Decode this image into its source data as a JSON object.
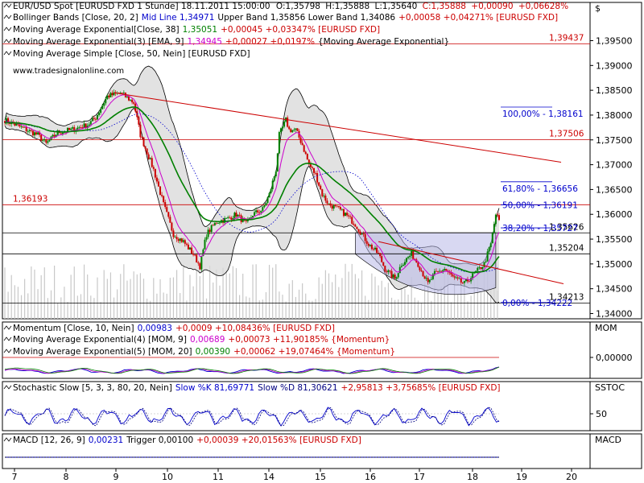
{
  "chart_data": [
    {
      "type": "candlestick",
      "title": "EUR/USD Spot [EURUSD FXD  1 Stunde] 18.11.2011 15:00:00",
      "quote": {
        "open_label": "O:",
        "open": "1,35798",
        "high_label": "H:",
        "high": "1,35888",
        "low_label": "L:",
        "low": "1,35640",
        "close_label": "C:",
        "close": "1,35888",
        "change": "+0,00090",
        "change_pct": "+0,06628%"
      },
      "currency_label": "$",
      "ylim": [
        1.3385,
        1.3985
      ],
      "y_ticks": [
        "1,39500",
        "1,39000",
        "1,38500",
        "1,38000",
        "1,37500",
        "1,37000",
        "1,36500",
        "1,36000",
        "1,35500",
        "1,35000",
        "1,34500",
        "1,34000"
      ],
      "y_tick_values": [
        1.395,
        1.39,
        1.385,
        1.38,
        1.375,
        1.37,
        1.365,
        1.36,
        1.355,
        1.35,
        1.345,
        1.34
      ],
      "x_ticks": [
        "7",
        "8",
        "9",
        "10",
        "11",
        "14",
        "15",
        "16",
        "17",
        "18",
        "19",
        "20"
      ],
      "watermark": "www.tradesignalonline.com",
      "legend": [
        {
          "text": "Bollinger Bands [Close, 20, 2]",
          "color": "#000000"
        },
        {
          "text": "Mid Line 1,34971",
          "color": "#0000cc"
        },
        {
          "text": "Upper Band 1,35856 Lower Band 1,34086",
          "color": "#000000"
        },
        {
          "text": "+0,00058 +0,04271% [EURUSD FXD]",
          "color": "#cc0000"
        },
        {
          "text": "Moving Average Exponential[Close, 38]",
          "color": "#000000"
        },
        {
          "text": "1,35051",
          "color": "#008000"
        },
        {
          "text": "+0,00045 +0,03347% [EURUSD FXD]",
          "color": "#cc0000"
        },
        {
          "text": "Moving Average Exponential(3) [EMA, 9]",
          "color": "#000000"
        },
        {
          "text": "1,34945",
          "color": "#cc00cc"
        },
        {
          "text": "+0,00027 +0,0197%",
          "color": "#cc0000"
        },
        {
          "text": "{Moving Average Exponential}",
          "color": "#000000"
        },
        {
          "text": "Moving Average Simple [Close, 50, Nein] [EURUSD FXD]",
          "color": "#000000"
        }
      ],
      "series": [
        {
          "name": "EMA 38",
          "color": "#008000"
        },
        {
          "name": "EMA 9",
          "color": "#cc00cc"
        },
        {
          "name": "SMA 50",
          "color": "#0000cc"
        },
        {
          "name": "Bollinger Bands",
          "color": "#000000"
        }
      ],
      "horizontal_levels": [
        {
          "label": "1,39437",
          "value": 1.39437,
          "color": "#cc0000"
        },
        {
          "label": "1,37506",
          "value": 1.37506,
          "color": "#cc0000"
        },
        {
          "label": "1,36193",
          "value": 1.36193,
          "color": "#cc0000"
        },
        {
          "label": "1,35626",
          "value": 1.35626,
          "color": "#000000"
        },
        {
          "label": "1,35204",
          "value": 1.35204,
          "color": "#000000"
        },
        {
          "label": "1,34213",
          "value": 1.34213,
          "color": "#000000"
        }
      ],
      "fibonacci": [
        {
          "label": "100,00% - 1,38161",
          "value": 1.38161
        },
        {
          "label": "61,80% - 1,36656",
          "value": 1.36656
        },
        {
          "label": "50,00% - 1,36191",
          "value": 1.36191
        },
        {
          "label": "38,20% - 1,35727",
          "value": 1.35727
        },
        {
          "label": "0,00% - 1,34222",
          "value": 1.34222
        }
      ],
      "colors": {
        "up": "#008000",
        "down": "#cc0000",
        "fib": "#0000cc",
        "band_fill": "#d8d8d8",
        "volume": "#c8c8c8"
      }
    },
    {
      "type": "line",
      "name": "MOM",
      "legend": [
        {
          "text": "Momentum [Close, 10, Nein]",
          "color": "#000000"
        },
        {
          "text": "0,00983",
          "color": "#0000cc"
        },
        {
          "text": "+0,0009 +10,08436% [EURUSD FXD]",
          "color": "#cc0000"
        },
        {
          "text": "Moving Average Exponential(4) [MOM, 9]",
          "color": "#000000"
        },
        {
          "text": "0,00689",
          "color": "#cc00cc"
        },
        {
          "text": "+0,00073 +11,90185% {Momentum}",
          "color": "#cc0000"
        },
        {
          "text": "Moving Average Exponential(5) [MOM, 20]",
          "color": "#000000"
        },
        {
          "text": "0,00390",
          "color": "#008000"
        },
        {
          "text": "+0,00062 +19,07464% {Momentum}",
          "color": "#cc0000"
        }
      ],
      "y_ticks": [
        "0,00000"
      ]
    },
    {
      "type": "line",
      "name": "SSTOC",
      "legend": [
        {
          "text": "Stochastic Slow [5, 3, 3, 80, 20, Nein]",
          "color": "#000000"
        },
        {
          "text": "Slow %K 81,69771",
          "color": "#0000cc"
        },
        {
          "text": "Slow %D 81,30621",
          "color": "#000080"
        },
        {
          "text": "+2,95813 +3,75685% [EURUSD FXD]",
          "color": "#cc0000"
        }
      ],
      "y_ticks": [
        "50"
      ]
    },
    {
      "type": "line",
      "name": "MACD",
      "legend": [
        {
          "text": "MACD [12, 26, 9]",
          "color": "#000000"
        },
        {
          "text": "0,00231",
          "color": "#0000cc"
        },
        {
          "text": "Trigger 0,00100",
          "color": "#000000"
        },
        {
          "text": "+0,00039 +20,01563% [EURUSD FXD]",
          "color": "#cc0000"
        }
      ],
      "y_ticks": []
    }
  ]
}
